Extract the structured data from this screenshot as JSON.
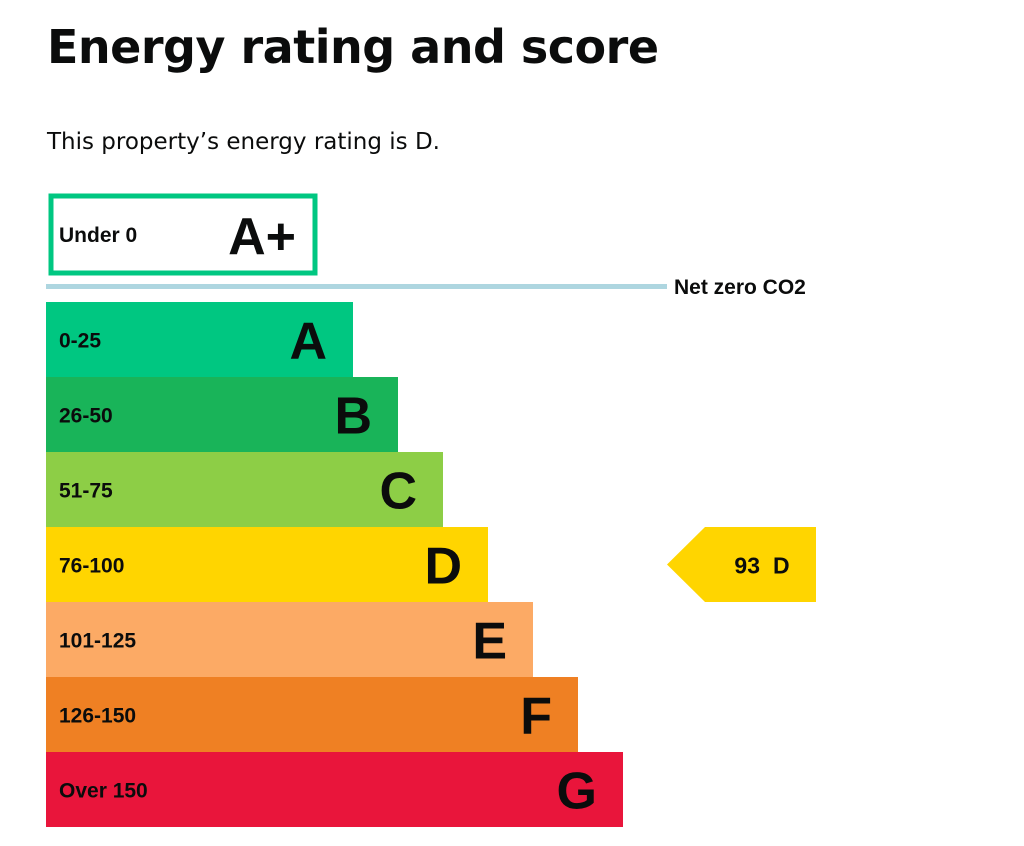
{
  "header": {
    "title": "Energy rating and score",
    "summary": "This property’s energy rating is D."
  },
  "colors": {
    "A_plus_border": "#00c781",
    "A": "#00c781",
    "B": "#19b459",
    "C": "#8dce46",
    "D": "#ffd500",
    "E": "#fcaa65",
    "F": "#ef8023",
    "G": "#e9153b",
    "net_zero_line": "#aed6e0",
    "text": "#0b0c0c"
  },
  "chart_data": {
    "type": "bar",
    "title": "",
    "bands": [
      {
        "rating": "A+",
        "range": "Under 0",
        "style": "outline"
      },
      {
        "rating": "A",
        "range": "0-25"
      },
      {
        "rating": "B",
        "range": "26-50"
      },
      {
        "rating": "C",
        "range": "51-75"
      },
      {
        "rating": "D",
        "range": "76-100"
      },
      {
        "rating": "E",
        "range": "101-125"
      },
      {
        "rating": "F",
        "range": "126-150"
      },
      {
        "rating": "G",
        "range": "Over 150"
      }
    ],
    "net_zero": {
      "label": "Net zero CO2",
      "position": "between A+ and A"
    },
    "current": {
      "score": "93",
      "rating": "D"
    }
  }
}
